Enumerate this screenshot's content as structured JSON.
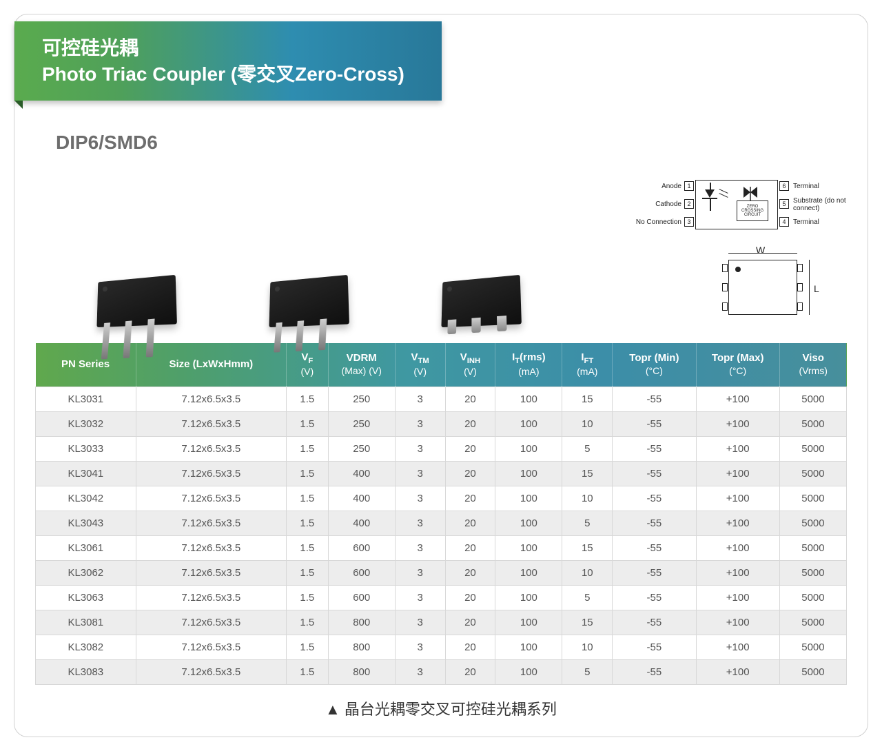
{
  "title": {
    "line1_cn": "可控硅光耦",
    "line2_en": "Photo Triac Coupler (零交叉Zero-Cross)"
  },
  "subhead": "DIP6/SMD6",
  "pin_diagram": {
    "pins_left": [
      {
        "num": "1",
        "label": "Anode"
      },
      {
        "num": "2",
        "label": "Cathode"
      },
      {
        "num": "3",
        "label": "No Connection"
      }
    ],
    "pins_right": [
      {
        "num": "6",
        "label": "Terminal"
      },
      {
        "num": "5",
        "label": "Substrate (do not connect)"
      },
      {
        "num": "4",
        "label": "Terminal"
      }
    ],
    "inner_block": "ZERO CROSSING CIRCUIT"
  },
  "dimension_labels": {
    "W": "W",
    "L": "L"
  },
  "table": {
    "columns": [
      {
        "key": "pn",
        "label_html": "PN Series",
        "width": "12%"
      },
      {
        "key": "size",
        "label_html": "Size (LxWxHmm)",
        "width": "18%"
      },
      {
        "key": "vf",
        "label_html": "V<sub>F</sub><span class='sub'>(V)</span>",
        "width": "5%"
      },
      {
        "key": "vdrm",
        "label_html": "VDRM<span class='sub'>(Max) (V)</span>",
        "width": "8%"
      },
      {
        "key": "vtm",
        "label_html": "V<sub>TM</sub><span class='sub'>(V)</span>",
        "width": "6%"
      },
      {
        "key": "vinh",
        "label_html": "V<sub>INH</sub><span class='sub'>(V)</span>",
        "width": "6%"
      },
      {
        "key": "it",
        "label_html": "I<sub>T</sub>(rms)<span class='sub'>(mA)</span>",
        "width": "8%"
      },
      {
        "key": "ift",
        "label_html": "I<sub>FT</sub><span class='sub'>(mA)</span>",
        "width": "6%"
      },
      {
        "key": "tmin",
        "label_html": "Topr (Min)<span class='sub'>(°C)</span>",
        "width": "10%"
      },
      {
        "key": "tmax",
        "label_html": "Topr (Max)<span class='sub'>(°C)</span>",
        "width": "10%"
      },
      {
        "key": "viso",
        "label_html": "Viso<span class='sub'>(Vrms)</span>",
        "width": "8%"
      }
    ],
    "rows": [
      {
        "pn": "KL3031",
        "size": "7.12x6.5x3.5",
        "vf": "1.5",
        "vdrm": "250",
        "vtm": "3",
        "vinh": "20",
        "it": "100",
        "ift": "15",
        "tmin": "-55",
        "tmax": "+100",
        "viso": "5000"
      },
      {
        "pn": "KL3032",
        "size": "7.12x6.5x3.5",
        "vf": "1.5",
        "vdrm": "250",
        "vtm": "3",
        "vinh": "20",
        "it": "100",
        "ift": "10",
        "tmin": "-55",
        "tmax": "+100",
        "viso": "5000"
      },
      {
        "pn": "KL3033",
        "size": "7.12x6.5x3.5",
        "vf": "1.5",
        "vdrm": "250",
        "vtm": "3",
        "vinh": "20",
        "it": "100",
        "ift": "5",
        "tmin": "-55",
        "tmax": "+100",
        "viso": "5000"
      },
      {
        "pn": "KL3041",
        "size": "7.12x6.5x3.5",
        "vf": "1.5",
        "vdrm": "400",
        "vtm": "3",
        "vinh": "20",
        "it": "100",
        "ift": "15",
        "tmin": "-55",
        "tmax": "+100",
        "viso": "5000"
      },
      {
        "pn": "KL3042",
        "size": "7.12x6.5x3.5",
        "vf": "1.5",
        "vdrm": "400",
        "vtm": "3",
        "vinh": "20",
        "it": "100",
        "ift": "10",
        "tmin": "-55",
        "tmax": "+100",
        "viso": "5000"
      },
      {
        "pn": "KL3043",
        "size": "7.12x6.5x3.5",
        "vf": "1.5",
        "vdrm": "400",
        "vtm": "3",
        "vinh": "20",
        "it": "100",
        "ift": "5",
        "tmin": "-55",
        "tmax": "+100",
        "viso": "5000"
      },
      {
        "pn": "KL3061",
        "size": "7.12x6.5x3.5",
        "vf": "1.5",
        "vdrm": "600",
        "vtm": "3",
        "vinh": "20",
        "it": "100",
        "ift": "15",
        "tmin": "-55",
        "tmax": "+100",
        "viso": "5000"
      },
      {
        "pn": "KL3062",
        "size": "7.12x6.5x3.5",
        "vf": "1.5",
        "vdrm": "600",
        "vtm": "3",
        "vinh": "20",
        "it": "100",
        "ift": "10",
        "tmin": "-55",
        "tmax": "+100",
        "viso": "5000"
      },
      {
        "pn": "KL3063",
        "size": "7.12x6.5x3.5",
        "vf": "1.5",
        "vdrm": "600",
        "vtm": "3",
        "vinh": "20",
        "it": "100",
        "ift": "5",
        "tmin": "-55",
        "tmax": "+100",
        "viso": "5000"
      },
      {
        "pn": "KL3081",
        "size": "7.12x6.5x3.5",
        "vf": "1.5",
        "vdrm": "800",
        "vtm": "3",
        "vinh": "20",
        "it": "100",
        "ift": "15",
        "tmin": "-55",
        "tmax": "+100",
        "viso": "5000"
      },
      {
        "pn": "KL3082",
        "size": "7.12x6.5x3.5",
        "vf": "1.5",
        "vdrm": "800",
        "vtm": "3",
        "vinh": "20",
        "it": "100",
        "ift": "10",
        "tmin": "-55",
        "tmax": "+100",
        "viso": "5000"
      },
      {
        "pn": "KL3083",
        "size": "7.12x6.5x3.5",
        "vf": "1.5",
        "vdrm": "800",
        "vtm": "3",
        "vinh": "20",
        "it": "100",
        "ift": "5",
        "tmin": "-55",
        "tmax": "+100",
        "viso": "5000"
      }
    ]
  },
  "caption": "▲ 晶台光耦零交叉可控硅光耦系列",
  "colors": {
    "header_gradient_from": "#60a84d",
    "header_gradient_to": "#478f9c",
    "row_alt_bg": "#ededed",
    "border": "#d8d8d8",
    "text": "#555555"
  }
}
